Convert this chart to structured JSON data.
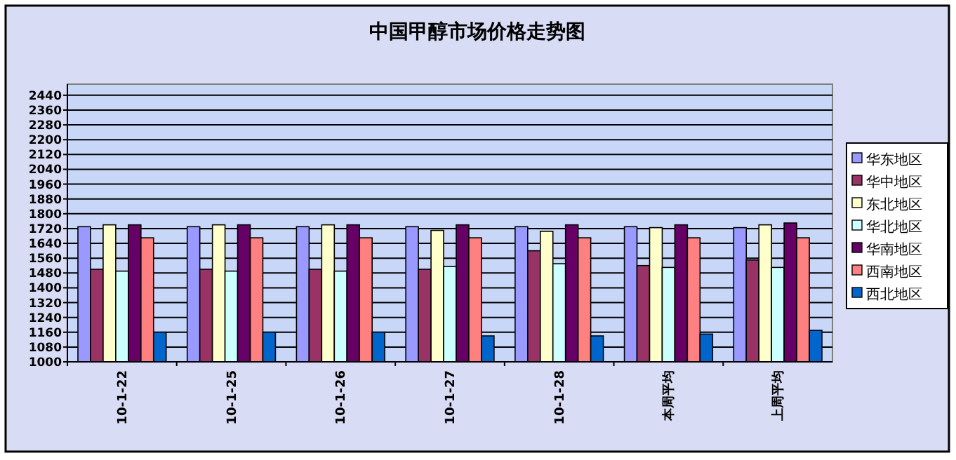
{
  "chart_data": {
    "type": "bar",
    "title": "中国甲醇市场价格走势图",
    "categories": [
      "10-1-22",
      "10-1-25",
      "10-1-26",
      "10-1-27",
      "10-1-28",
      "本周平均",
      "上周平均"
    ],
    "series": [
      {
        "name": "华东地区",
        "color": "#9999ff",
        "values": [
          1730,
          1730,
          1730,
          1730,
          1730,
          1730,
          1725
        ]
      },
      {
        "name": "华中地区",
        "color": "#993366",
        "values": [
          1500,
          1500,
          1500,
          1500,
          1600,
          1520,
          1550
        ]
      },
      {
        "name": "东北地区",
        "color": "#ffffcc",
        "values": [
          1740,
          1740,
          1740,
          1710,
          1705,
          1725,
          1740
        ]
      },
      {
        "name": "华北地区",
        "color": "#ccffff",
        "values": [
          1490,
          1490,
          1490,
          1515,
          1530,
          1510,
          1510
        ]
      },
      {
        "name": "华南地区",
        "color": "#660066",
        "values": [
          1740,
          1740,
          1740,
          1740,
          1740,
          1740,
          1750
        ]
      },
      {
        "name": "西南地区",
        "color": "#ff8080",
        "values": [
          1670,
          1670,
          1670,
          1670,
          1670,
          1670,
          1670
        ]
      },
      {
        "name": "西北地区",
        "color": "#0066cc",
        "values": [
          1160,
          1160,
          1160,
          1140,
          1140,
          1150,
          1170
        ]
      }
    ],
    "ylim": [
      1000,
      2500
    ],
    "yticks": [
      1000,
      1080,
      1160,
      1240,
      1320,
      1400,
      1480,
      1560,
      1640,
      1720,
      1800,
      1880,
      1960,
      2040,
      2120,
      2200,
      2280,
      2360,
      2440
    ],
    "grid": "y",
    "legend": "right"
  }
}
